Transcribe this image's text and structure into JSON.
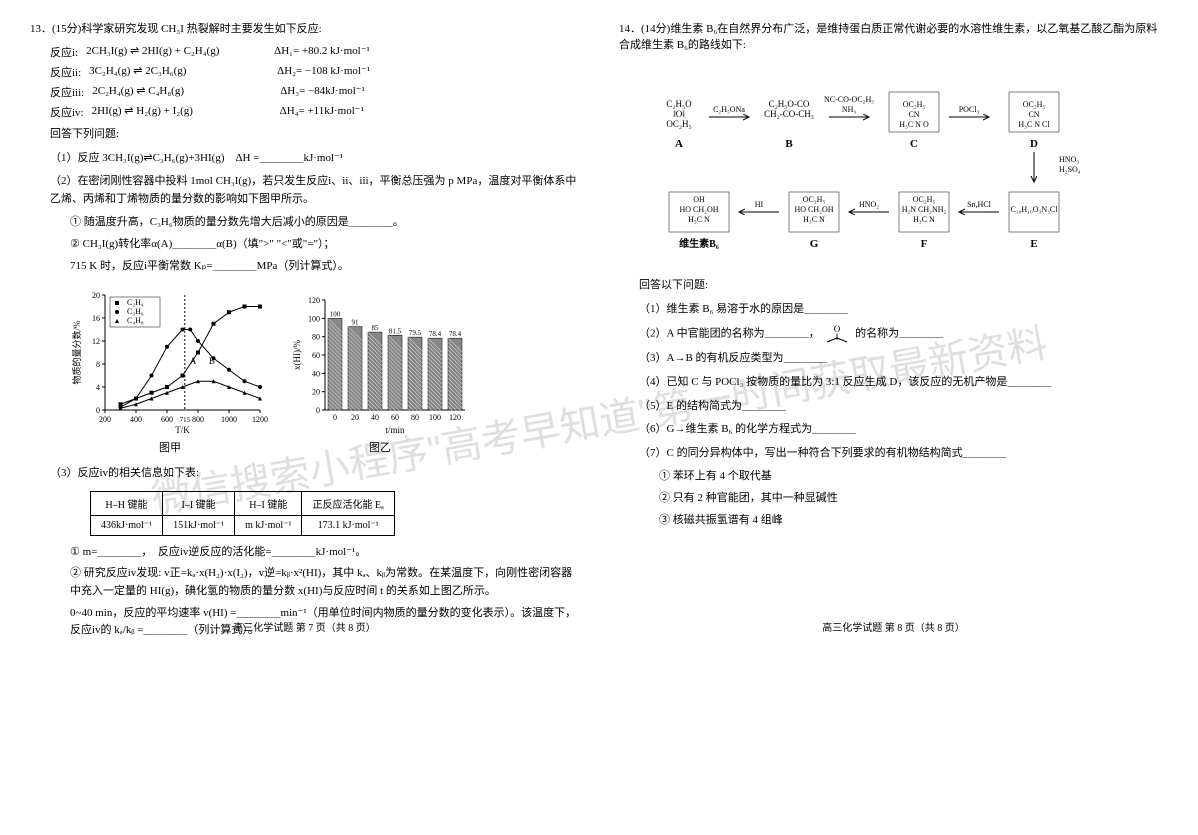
{
  "q13": {
    "header": "13．(15分)科学家研究发现 CH₃I 热裂解时主要发生如下反应:",
    "reactions": [
      {
        "label": "反应i:",
        "eq": "2CH₃I(g) ⇌ 2HI(g) + C₂H₄(g)",
        "dh": "ΔH₁= +80.2 kJ·mol⁻¹"
      },
      {
        "label": "反应ii:",
        "eq": "3C₂H₄(g) ⇌ 2C₃H₆(g)",
        "dh": "ΔH₂= −108 kJ·mol⁻¹"
      },
      {
        "label": "反应iii:",
        "eq": "2C₂H₄(g) ⇌ C₄H₈(g)",
        "dh": "ΔH₃= −84kJ·mol⁻¹"
      },
      {
        "label": "反应iv:",
        "eq": "2HI(g) ⇌ H₂(g) + I₂(g)",
        "dh": "ΔH₄= +11kJ·mol⁻¹"
      }
    ],
    "answer_prompt": "回答下列问题:",
    "sub1": "（1）反应 3CH₃I(g)⇌C₃H₆(g)+3HI(g)　ΔH =＿＿＿＿kJ·mol⁻¹",
    "sub2": "（2）在密闭刚性容器中投料 1mol CH₃I(g)，若只发生反应i、ii、iii，平衡总压强为 p MPa，温度对平衡体系中乙烯、丙烯和丁烯物质的量分数的影响如下图甲所示。",
    "sub2_1": "① 随温度升高，C₃H₆物质的量分数先增大后减小的原因是＿＿＿＿。",
    "sub2_2": "② CH₃I(g)转化率α(A)＿＿＿＿α(B)（填\">\" \"<\"或\"=\"）；",
    "sub2_3": "715 K 时，反应i平衡常数 Kₚ=＿＿＿＿MPa（列计算式）。",
    "chart1_label": "图甲",
    "chart2_label": "图乙",
    "chart1": {
      "type": "line",
      "xlabel": "T/K",
      "ylabel": "物质的量分数/%",
      "xlim": [
        200,
        1200
      ],
      "ylim": [
        0,
        20
      ],
      "xticks": [
        200,
        400,
        600,
        800,
        1000,
        1200
      ],
      "yticks": [
        0,
        4,
        8,
        12,
        16,
        20
      ],
      "axis_label_fontsize": 9,
      "tick_fontsize": 8,
      "legend": [
        "C₂H₄",
        "C₃H₆",
        "C₄H₈"
      ],
      "legend_fontsize": 8,
      "marker_a": "A",
      "marker_b": "B",
      "vline_x": 715,
      "series": [
        {
          "name": "C₂H₄",
          "marker": "square",
          "color": "#000",
          "points": [
            [
              300,
              1
            ],
            [
              400,
              2
            ],
            [
              500,
              3
            ],
            [
              600,
              4
            ],
            [
              700,
              6
            ],
            [
              800,
              10
            ],
            [
              900,
              15
            ],
            [
              1000,
              17
            ],
            [
              1100,
              18
            ],
            [
              1200,
              18
            ]
          ]
        },
        {
          "name": "C₃H₆",
          "marker": "circle",
          "color": "#000",
          "points": [
            [
              300,
              0.5
            ],
            [
              400,
              2
            ],
            [
              500,
              6
            ],
            [
              600,
              11
            ],
            [
              700,
              14
            ],
            [
              750,
              14
            ],
            [
              800,
              12
            ],
            [
              900,
              9
            ],
            [
              1000,
              7
            ],
            [
              1100,
              5
            ],
            [
              1200,
              4
            ]
          ]
        },
        {
          "name": "C₄H₈",
          "marker": "triangle",
          "color": "#000",
          "points": [
            [
              300,
              0.3
            ],
            [
              400,
              1
            ],
            [
              500,
              2
            ],
            [
              600,
              3
            ],
            [
              700,
              4
            ],
            [
              800,
              5
            ],
            [
              900,
              5
            ],
            [
              1000,
              4
            ],
            [
              1100,
              3
            ],
            [
              1200,
              2
            ]
          ]
        }
      ]
    },
    "chart2": {
      "type": "bar",
      "xlabel": "t/min",
      "ylabel": "x(HI)/%",
      "xlim": [
        0,
        120
      ],
      "ylim": [
        0,
        120
      ],
      "xticks": [
        0,
        20,
        40,
        60,
        80,
        100,
        120
      ],
      "yticks": [
        0,
        20,
        40,
        60,
        80,
        100,
        120
      ],
      "axis_label_fontsize": 9,
      "tick_fontsize": 8,
      "bar_color": "#888888",
      "bar_hatch": "diagonal",
      "values": [
        100,
        91,
        85,
        81.5,
        79.5,
        78.4,
        78.4
      ],
      "categories": [
        0,
        20,
        40,
        60,
        80,
        100,
        120
      ]
    },
    "sub3": "（3）反应iv的相关信息如下表:",
    "table": {
      "headers": [
        "H–H 键能",
        "I–I 键能",
        "H–I 键能",
        "正反应活化能 Eₐ"
      ],
      "row": [
        "436kJ·mol⁻¹",
        "151kJ·mol⁻¹",
        "m kJ·mol⁻¹",
        "173.1 kJ·mol⁻¹"
      ]
    },
    "sub3_1": "① m=＿＿＿＿，　反应iv逆反应的活化能=＿＿＿＿kJ·mol⁻¹。",
    "sub3_2": "② 研究反应iv发现: v正=kₐ·x(H₂)·x(I₂)，v逆=kᵦ·x²(HI)，其中 kₐ、kᵦ为常数。在某温度下，向刚性密闭容器中充入一定量的 HI(g)，碘化氢的物质的量分数 x(HI)与反应时间 t 的关系如上图乙所示。",
    "sub3_3": "0~40 min，反应的平均速率 v(HI) =＿＿＿＿min⁻¹（用单位时间内物质的量分数的变化表示）。该温度下，反应iv的 kₐ/kᵦ =＿＿＿＿（列计算式）。",
    "footer": "高三化学试题 第 7 页（共 8 页）"
  },
  "q14": {
    "header": "14．(14分)维生素 B₆在自然界分布广泛，是维持蛋白质正常代谢必要的水溶性维生素，以乙氧基乙酸乙酯为原料合成维生素 B₆的路线如下:",
    "scheme": {
      "compounds": [
        "A",
        "B",
        "C",
        "D",
        "E",
        "F",
        "G",
        "维生素B₆"
      ],
      "conditions": [
        "C₂H₅ONa",
        "NH₃",
        "POCl₃",
        "HNO₃/H₂SO₄",
        "Sn,HCl",
        "HNO₂",
        "HI"
      ],
      "labels_a": "C₂H₅O–CO–O–C₂H₅",
      "labels_b": "C₂H₅O–CO–CH₂–CO–CH₃",
      "extra": "NC–CO–OC₂H₅"
    },
    "answer_prompt": "回答以下问题:",
    "sub1": "（1）维生素 B₆ 易溶于水的原因是＿＿＿＿",
    "sub2_a": "（2）A 中官能团的名称为＿＿＿＿，",
    "sub2_b": "的名称为＿＿＿＿",
    "sub3": "（3）A→B 的有机反应类型为＿＿＿＿",
    "sub4": "（4）已知 C 与 POCl₃ 按物质的量比为 3:1 反应生成 D，该反应的无机产物是＿＿＿＿",
    "sub5": "（5）E 的结构简式为＿＿＿＿",
    "sub6": "（6）G→维生素 B₆ 的化学方程式为＿＿＿＿",
    "sub7": "（7）C 的同分异构体中，写出一种符合下列要求的有机物结构简式＿＿＿＿",
    "sub7_1": "① 苯环上有 4 个取代基",
    "sub7_2": "② 只有 2 种官能团，其中一种显碱性",
    "sub7_3": "③ 核磁共振氢谱有 4 组峰",
    "footer": "高三化学试题 第 8 页（共 8 页）"
  },
  "watermark": "微信搜索小程序\"高考早知道\"第一时间获取最新资料"
}
